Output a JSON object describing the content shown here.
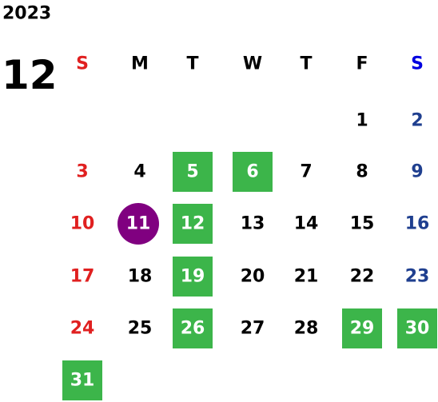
{
  "year": "2023",
  "month": "12",
  "weekdays": [
    "S",
    "M",
    "T",
    "W",
    "T",
    "F",
    "S"
  ],
  "weekday_colors": [
    "#e02020",
    "#000000",
    "#000000",
    "#000000",
    "#000000",
    "#000000",
    "#0000e0"
  ],
  "day_colors": [
    "#e02020",
    "#000000",
    "#000000",
    "#000000",
    "#000000",
    "#000000",
    "#1f3f8f"
  ],
  "weeks": [
    [
      null,
      null,
      null,
      null,
      null,
      1,
      2
    ],
    [
      3,
      4,
      {
        "day": 5,
        "fill": "#3cb54a"
      },
      {
        "day": 6,
        "fill": "#3cb54a"
      },
      7,
      8,
      9
    ],
    [
      10,
      {
        "day": 11,
        "fill": "#800080",
        "shape": "circle"
      },
      {
        "day": 12,
        "fill": "#3cb54a"
      },
      13,
      14,
      15,
      16
    ],
    [
      17,
      18,
      {
        "day": 19,
        "fill": "#3cb54a"
      },
      20,
      21,
      22,
      23
    ],
    [
      24,
      25,
      {
        "day": 26,
        "fill": "#3cb54a"
      },
      27,
      28,
      {
        "day": 29,
        "fill": "#3cb54a"
      },
      {
        "day": 30,
        "fill": "#3cb54a"
      }
    ],
    [
      {
        "day": 31,
        "fill": "#3cb54a"
      }
    ]
  ]
}
